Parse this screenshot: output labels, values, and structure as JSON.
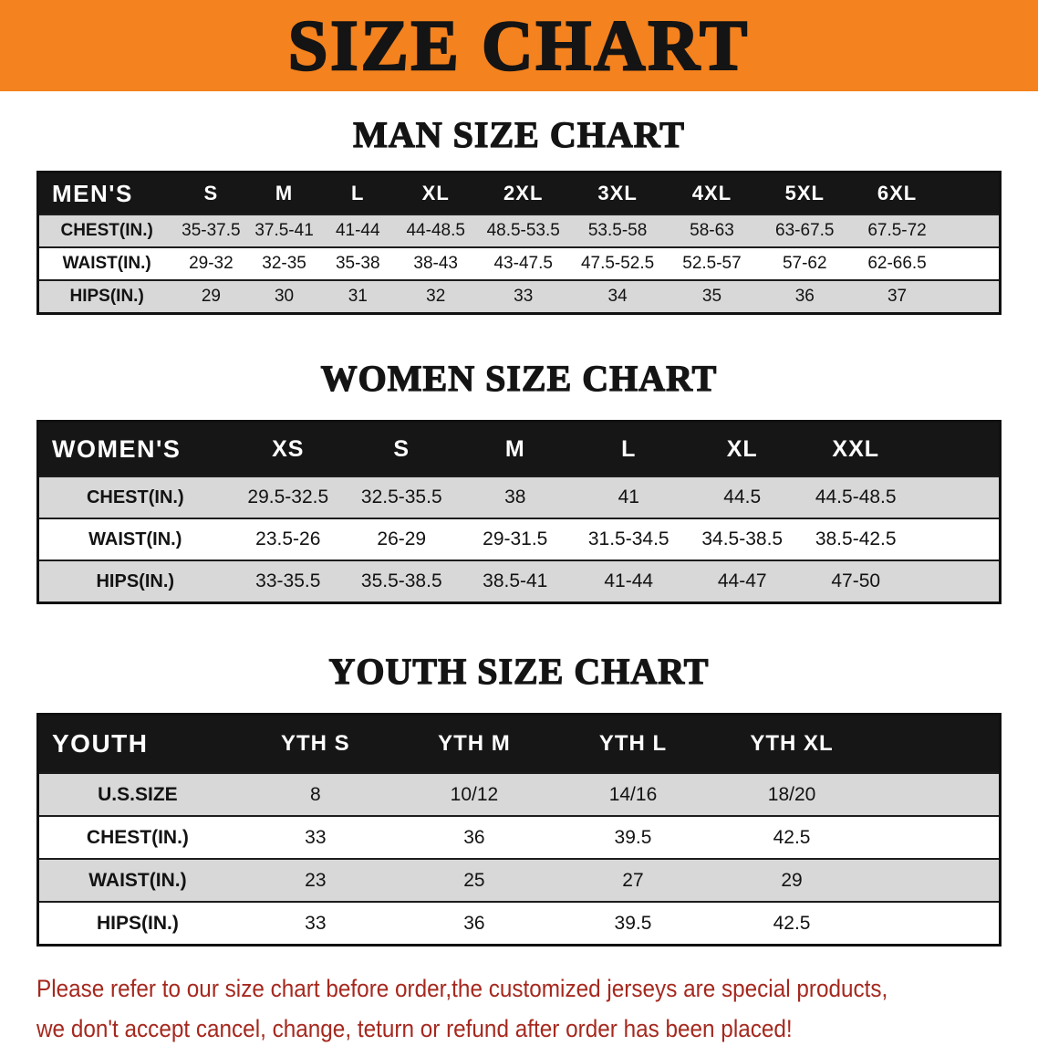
{
  "banner": {
    "title": "SIZE CHART"
  },
  "men": {
    "heading": "MAN SIZE CHART",
    "header": [
      "MEN'S",
      "S",
      "M",
      "L",
      "XL",
      "2XL",
      "3XL",
      "4XL",
      "5XL",
      "6XL"
    ],
    "rows": [
      {
        "label": "CHEST(IN.)",
        "values": [
          "35-37.5",
          "37.5-41",
          "41-44",
          "44-48.5",
          "48.5-53.5",
          "53.5-58",
          "58-63",
          "63-67.5",
          "67.5-72"
        ]
      },
      {
        "label": "WAIST(IN.)",
        "values": [
          "29-32",
          "32-35",
          "35-38",
          "38-43",
          "43-47.5",
          "47.5-52.5",
          "52.5-57",
          "57-62",
          "62-66.5"
        ]
      },
      {
        "label": "HIPS(IN.)",
        "values": [
          "29",
          "30",
          "31",
          "32",
          "33",
          "34",
          "35",
          "36",
          "37"
        ]
      }
    ]
  },
  "women": {
    "heading": "WOMEN SIZE CHART",
    "header": [
      "WOMEN'S",
      "XS",
      "S",
      "M",
      "L",
      "XL",
      "XXL"
    ],
    "rows": [
      {
        "label": "CHEST(IN.)",
        "values": [
          "29.5-32.5",
          "32.5-35.5",
          "38",
          "41",
          "44.5",
          "44.5-48.5"
        ]
      },
      {
        "label": "WAIST(IN.)",
        "values": [
          "23.5-26",
          "26-29",
          "29-31.5",
          "31.5-34.5",
          "34.5-38.5",
          "38.5-42.5"
        ]
      },
      {
        "label": "HIPS(IN.)",
        "values": [
          "33-35.5",
          "35.5-38.5",
          "38.5-41",
          "41-44",
          "44-47",
          "47-50"
        ]
      }
    ]
  },
  "youth": {
    "heading": "YOUTH SIZE CHART",
    "header": [
      "YOUTH",
      "YTH S",
      "YTH M",
      "YTH L",
      "YTH XL"
    ],
    "rows": [
      {
        "label": "U.S.SIZE",
        "values": [
          "8",
          "10/12",
          "14/16",
          "18/20"
        ]
      },
      {
        "label": "CHEST(IN.)",
        "values": [
          "33",
          "36",
          "39.5",
          "42.5"
        ]
      },
      {
        "label": "WAIST(IN.)",
        "values": [
          "23",
          "25",
          "27",
          "29"
        ]
      },
      {
        "label": "HIPS(IN.)",
        "values": [
          "33",
          "36",
          "39.5",
          "42.5"
        ]
      }
    ]
  },
  "disclaimer": {
    "line1": "Please refer to our size chart before order,the customized jerseys are special products,",
    "line2": "we don't accept cancel, change, teturn or refund after order has been placed!"
  },
  "colors": {
    "banner_orange": "#F4821E",
    "table_header_black": "#161616",
    "row_gray": "#D8D8D8",
    "disclaimer_red": "#A5281E"
  }
}
